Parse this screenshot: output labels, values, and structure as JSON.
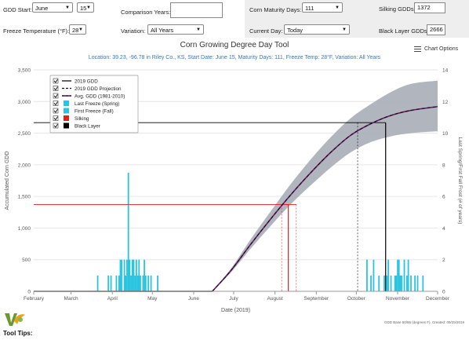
{
  "controls": {
    "gdd_start_label": "GDD Start:",
    "gdd_start_month": "June",
    "gdd_start_day": "15",
    "comparison_years_label": "Comparison Years:",
    "comparison_years_value": "",
    "corn_maturity_label": "Corn Maturity Days:",
    "corn_maturity_value": "111",
    "silking_gdds_label": "Silking GDDs:",
    "silking_gdds_value": "1372",
    "freeze_temp_label": "Freeze Temperature (°F):",
    "freeze_temp_value": "28",
    "variation_label": "Variation:",
    "variation_value": "All Years",
    "current_day_label": "Current Day:",
    "current_day_value": "Today",
    "black_layer_label": "Black Layer GDDs:",
    "black_layer_value": "2666"
  },
  "chart_options_label": "Chart Options",
  "tool_tips_label": "Tool Tips:",
  "credit": "GDD Base 50/86 (degrees F), Created: 09/25/2019",
  "colors": {
    "gdd_2019": "#222222",
    "avg_gdd": "#6a1b6a",
    "freeze": "#29c4e0",
    "silking": "#e02020",
    "black_layer": "#000000",
    "band": "#a9adb6",
    "subtitle": "#3a78b8"
  },
  "chart_data": {
    "type": "line",
    "title": "Corn Growing Degree Day Tool",
    "subtitle": "Location: 39.23, -96.78 in Riley Co., KS, Start Date: June 15, Maturity Days: 111, Freeze Temp: 28°F, Variation: All Years",
    "xlabel": "Date (2019)",
    "ylabel": "Accumulated Corn GDD",
    "y2label": "Last Spring/First Fall Frost (# of years)",
    "x_categories": [
      "February",
      "March",
      "April",
      "May",
      "June",
      "July",
      "August",
      "September",
      "October",
      "November",
      "December"
    ],
    "ylim": [
      0,
      3500
    ],
    "yticks": [
      "0",
      "500",
      "1,000",
      "1,500",
      "2,000",
      "2,500",
      "3,000",
      "3,500"
    ],
    "y2lim": [
      0,
      14
    ],
    "y2ticks": [
      "0",
      "2",
      "4",
      "6",
      "8",
      "10",
      "12",
      "14"
    ],
    "legend": {
      "placement": "top-left",
      "items": [
        "2019 GDD",
        "2019 GDD Projection",
        "Avg. GDD (1981-2010)",
        "Last Freeze (Spring)",
        "First Freeze (Fall)",
        "Silking",
        "Black Layer"
      ]
    },
    "avg_gdd": {
      "x_day_of_year": [
        166,
        180,
        195,
        210,
        225,
        240,
        255,
        270,
        285,
        300,
        315,
        335
      ],
      "y": [
        0,
        330,
        750,
        1150,
        1530,
        1880,
        2200,
        2470,
        2650,
        2780,
        2860,
        2920
      ]
    },
    "projection_band": {
      "x_day_of_year": [
        166,
        180,
        195,
        210,
        225,
        240,
        255,
        270,
        285,
        300,
        315,
        335
      ],
      "upper": [
        0,
        360,
        830,
        1270,
        1700,
        2090,
        2440,
        2740,
        2960,
        3150,
        3280,
        3330
      ],
      "lower": [
        0,
        300,
        680,
        1040,
        1380,
        1680,
        1960,
        2200,
        2360,
        2450,
        2500,
        2530
      ]
    },
    "silking": {
      "gdd": 1372,
      "date_day_of_year": 223,
      "range_day_of_year": [
        218,
        229
      ]
    },
    "black_layer": {
      "gdd": 2666,
      "date_day_of_year": 296,
      "range_day_of_year": [
        275,
        296
      ]
    },
    "last_freeze_spring": {
      "x_day_of_year": [
        80,
        88,
        90,
        94,
        96,
        97,
        98,
        100,
        101,
        102,
        103,
        104,
        105,
        106,
        107,
        108,
        109,
        110,
        111,
        112,
        114,
        115,
        116,
        118,
        120,
        125
      ],
      "years": [
        1,
        1,
        1,
        1,
        1,
        2,
        2,
        2,
        1,
        2,
        7.5,
        2,
        1,
        2,
        2,
        1,
        2,
        1,
        2,
        1,
        1,
        2,
        1,
        1,
        1,
        1
      ]
    },
    "first_freeze_fall": {
      "x_day_of_year": [
        282,
        285,
        287,
        291,
        295,
        297,
        298,
        300,
        303,
        304,
        305,
        306,
        307,
        308,
        310,
        312,
        313,
        315,
        318,
        320,
        324
      ],
      "years": [
        2,
        1,
        2,
        1,
        1,
        1,
        2,
        1,
        1,
        1,
        2,
        2,
        1,
        1,
        2,
        1,
        2,
        1,
        1,
        1,
        1
      ]
    }
  }
}
